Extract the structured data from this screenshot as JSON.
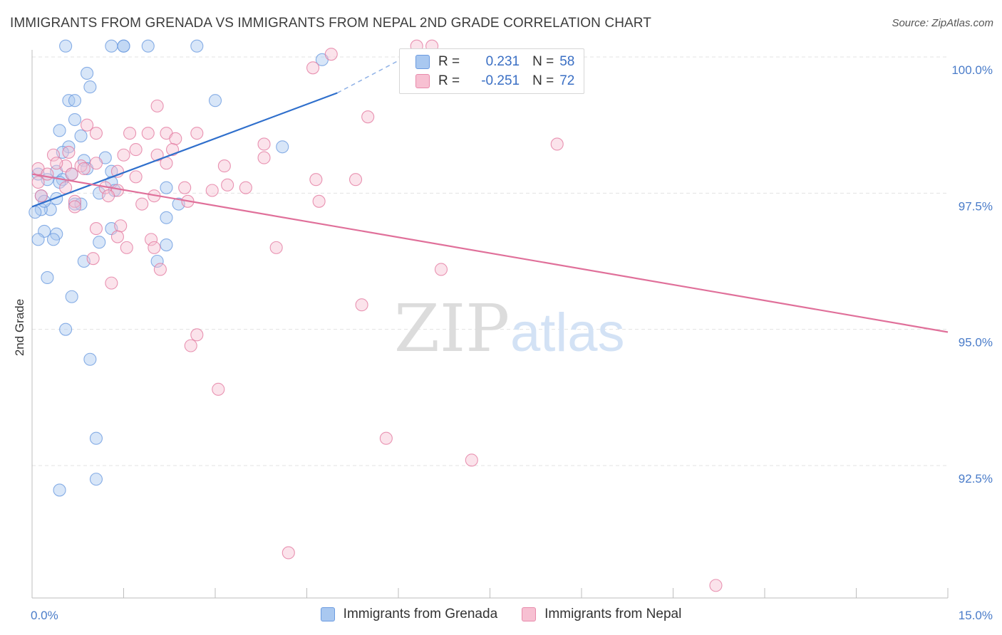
{
  "header": {
    "title": "IMMIGRANTS FROM GRENADA VS IMMIGRANTS FROM NEPAL 2ND GRADE CORRELATION CHART",
    "source": "Source: ZipAtlas.com"
  },
  "watermark": {
    "zip": "ZIP",
    "atlas": "atlas"
  },
  "legend": {
    "r_label": "R =",
    "n_label": "N =",
    "rows": [
      {
        "r": "0.231",
        "n": "58",
        "color": "#a9c8f0",
        "border": "#6b9be0"
      },
      {
        "r": "-0.251",
        "n": "72",
        "color": "#f7c0d2",
        "border": "#e88aab"
      }
    ]
  },
  "chart_data": {
    "type": "scatter",
    "title": "IMMIGRANTS FROM GRENADA VS IMMIGRANTS FROM NEPAL 2ND GRADE CORRELATION CHART",
    "xlabel": "",
    "ylabel": "2nd Grade",
    "xlim": [
      0,
      15
    ],
    "ylim": [
      90.2,
      100.4
    ],
    "x_tick_labels": [
      "0.0%",
      "15.0%"
    ],
    "y_ticks": [
      100.0,
      97.5,
      95.0,
      92.5
    ],
    "y_tick_labels": [
      "100.0%",
      "97.5%",
      "95.0%",
      "92.5%"
    ],
    "grid": true,
    "legend_position": "top-center",
    "series": [
      {
        "name": "Immigrants from Grenada",
        "color": "#6b9be0",
        "fill": "#a9c8f0",
        "trend": {
          "x": [
            0.0,
            5.0
          ],
          "y": [
            97.25,
            99.34
          ],
          "dashed_to": [
            6.2,
            100.05
          ]
        },
        "points": [
          [
            0.55,
            100.2
          ],
          [
            1.3,
            100.2
          ],
          [
            1.5,
            100.2
          ],
          [
            1.5,
            100.2
          ],
          [
            1.9,
            100.2
          ],
          [
            2.7,
            100.2
          ],
          [
            4.75,
            99.95
          ],
          [
            0.9,
            99.7
          ],
          [
            0.95,
            99.45
          ],
          [
            0.6,
            99.2
          ],
          [
            0.7,
            99.2
          ],
          [
            3.0,
            99.2
          ],
          [
            0.7,
            98.85
          ],
          [
            0.45,
            98.65
          ],
          [
            0.8,
            98.55
          ],
          [
            0.6,
            98.35
          ],
          [
            0.5,
            98.25
          ],
          [
            1.2,
            98.15
          ],
          [
            0.85,
            98.1
          ],
          [
            4.1,
            98.35
          ],
          [
            0.4,
            97.9
          ],
          [
            0.9,
            97.95
          ],
          [
            0.1,
            97.85
          ],
          [
            0.25,
            97.75
          ],
          [
            0.5,
            97.75
          ],
          [
            0.45,
            97.7
          ],
          [
            1.3,
            97.7
          ],
          [
            2.2,
            97.6
          ],
          [
            1.1,
            97.5
          ],
          [
            0.4,
            97.4
          ],
          [
            0.7,
            97.3
          ],
          [
            2.4,
            97.3
          ],
          [
            0.3,
            97.2
          ],
          [
            0.15,
            97.2
          ],
          [
            0.05,
            97.15
          ],
          [
            2.2,
            97.05
          ],
          [
            1.3,
            96.85
          ],
          [
            0.2,
            96.8
          ],
          [
            0.4,
            96.75
          ],
          [
            0.1,
            96.65
          ],
          [
            0.35,
            96.65
          ],
          [
            1.1,
            96.6
          ],
          [
            2.2,
            96.55
          ],
          [
            0.85,
            96.25
          ],
          [
            2.05,
            96.25
          ],
          [
            0.25,
            95.95
          ],
          [
            0.65,
            95.6
          ],
          [
            0.55,
            95.0
          ],
          [
            0.95,
            94.45
          ],
          [
            1.05,
            93.0
          ],
          [
            0.45,
            92.05
          ],
          [
            1.05,
            92.25
          ],
          [
            1.3,
            97.9
          ],
          [
            0.65,
            97.85
          ],
          [
            0.15,
            97.45
          ],
          [
            1.35,
            97.55
          ],
          [
            0.2,
            97.35
          ],
          [
            0.8,
            97.3
          ]
        ]
      },
      {
        "name": "Immigrants from Nepal",
        "color": "#e47aa0",
        "fill": "#f7c0d2",
        "trend": {
          "x": [
            0.0,
            15.0
          ],
          "y": [
            97.85,
            94.95
          ]
        },
        "points": [
          [
            6.3,
            100.2
          ],
          [
            6.55,
            100.2
          ],
          [
            6.3,
            100.0
          ],
          [
            4.9,
            100.05
          ],
          [
            4.6,
            99.8
          ],
          [
            2.05,
            99.1
          ],
          [
            5.5,
            98.9
          ],
          [
            0.9,
            98.75
          ],
          [
            1.05,
            98.6
          ],
          [
            1.6,
            98.6
          ],
          [
            1.9,
            98.6
          ],
          [
            2.2,
            98.6
          ],
          [
            2.7,
            98.6
          ],
          [
            2.35,
            98.5
          ],
          [
            2.3,
            98.3
          ],
          [
            1.7,
            98.3
          ],
          [
            3.8,
            98.4
          ],
          [
            8.6,
            98.4
          ],
          [
            0.35,
            98.2
          ],
          [
            0.6,
            98.25
          ],
          [
            1.5,
            98.2
          ],
          [
            3.8,
            98.15
          ],
          [
            1.05,
            98.05
          ],
          [
            0.55,
            98.0
          ],
          [
            0.1,
            97.95
          ],
          [
            0.4,
            98.05
          ],
          [
            0.8,
            98.0
          ],
          [
            2.2,
            98.05
          ],
          [
            3.15,
            98.0
          ],
          [
            0.65,
            97.85
          ],
          [
            1.4,
            97.9
          ],
          [
            1.7,
            97.8
          ],
          [
            4.65,
            97.75
          ],
          [
            5.3,
            97.75
          ],
          [
            3.2,
            97.65
          ],
          [
            2.5,
            97.6
          ],
          [
            2.95,
            97.55
          ],
          [
            0.55,
            97.6
          ],
          [
            1.2,
            97.6
          ],
          [
            1.4,
            97.55
          ],
          [
            1.25,
            97.45
          ],
          [
            2.0,
            97.45
          ],
          [
            0.15,
            97.45
          ],
          [
            0.7,
            97.35
          ],
          [
            2.55,
            97.35
          ],
          [
            1.8,
            97.3
          ],
          [
            4.7,
            97.35
          ],
          [
            0.7,
            97.25
          ],
          [
            1.45,
            96.9
          ],
          [
            1.05,
            96.85
          ],
          [
            1.4,
            96.7
          ],
          [
            1.95,
            96.65
          ],
          [
            2.0,
            96.5
          ],
          [
            1.55,
            96.5
          ],
          [
            4.0,
            96.5
          ],
          [
            1.0,
            96.3
          ],
          [
            2.1,
            96.1
          ],
          [
            6.7,
            96.1
          ],
          [
            1.3,
            95.85
          ],
          [
            5.4,
            95.45
          ],
          [
            2.7,
            94.9
          ],
          [
            2.6,
            94.7
          ],
          [
            3.05,
            93.9
          ],
          [
            5.8,
            93.0
          ],
          [
            7.2,
            92.6
          ],
          [
            4.2,
            90.9
          ],
          [
            11.2,
            90.3
          ],
          [
            0.1,
            97.7
          ],
          [
            0.25,
            97.85
          ],
          [
            0.85,
            97.95
          ],
          [
            2.05,
            98.2
          ],
          [
            3.5,
            97.6
          ]
        ]
      }
    ]
  },
  "bottom_legend": [
    {
      "label": "Immigrants from Grenada",
      "color": "#a9c8f0",
      "border": "#6b9be0"
    },
    {
      "label": "Immigrants from Nepal",
      "color": "#f7c0d2",
      "border": "#e88aab"
    }
  ]
}
